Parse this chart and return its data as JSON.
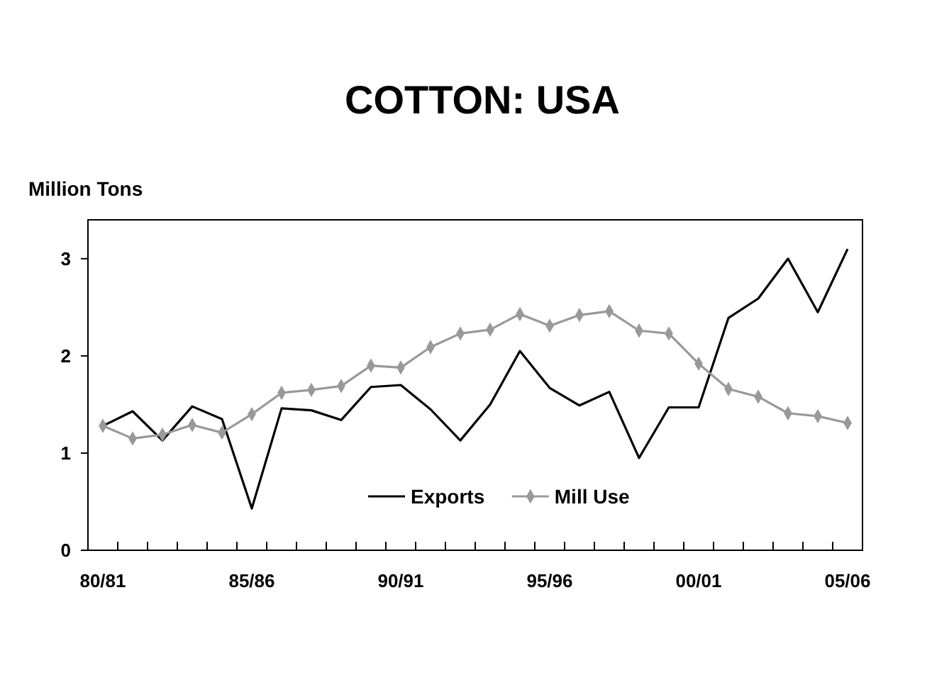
{
  "chart_data": {
    "type": "line",
    "title": "COTTON: USA",
    "ylabel": "Million Tons",
    "categories": [
      "80/81",
      null,
      null,
      null,
      null,
      "85/86",
      null,
      null,
      null,
      null,
      "90/91",
      null,
      null,
      null,
      null,
      "95/96",
      null,
      null,
      null,
      null,
      "00/01",
      null,
      null,
      null,
      null,
      "05/06"
    ],
    "series": [
      {
        "name": "Exports",
        "color": "#000000",
        "marker": "none",
        "values": [
          1.28,
          1.43,
          1.13,
          1.48,
          1.35,
          0.43,
          1.46,
          1.44,
          1.34,
          1.68,
          1.7,
          1.45,
          1.13,
          1.5,
          2.05,
          1.67,
          1.49,
          1.63,
          0.95,
          1.47,
          1.47,
          2.39,
          2.59,
          3.0,
          2.45,
          3.1
        ]
      },
      {
        "name": "Mill Use",
        "color": "#999999",
        "marker": "diamond",
        "values": [
          1.28,
          1.15,
          1.19,
          1.29,
          1.21,
          1.4,
          1.62,
          1.65,
          1.69,
          1.9,
          1.88,
          2.09,
          2.23,
          2.27,
          2.43,
          2.31,
          2.42,
          2.46,
          2.26,
          2.23,
          1.92,
          1.66,
          1.58,
          1.41,
          1.38,
          1.31
        ]
      }
    ],
    "ylim": [
      0,
      3.4
    ],
    "yticks": [
      0,
      1,
      2,
      3
    ],
    "grid": false,
    "legend": "bottom",
    "line_style": "solid"
  }
}
